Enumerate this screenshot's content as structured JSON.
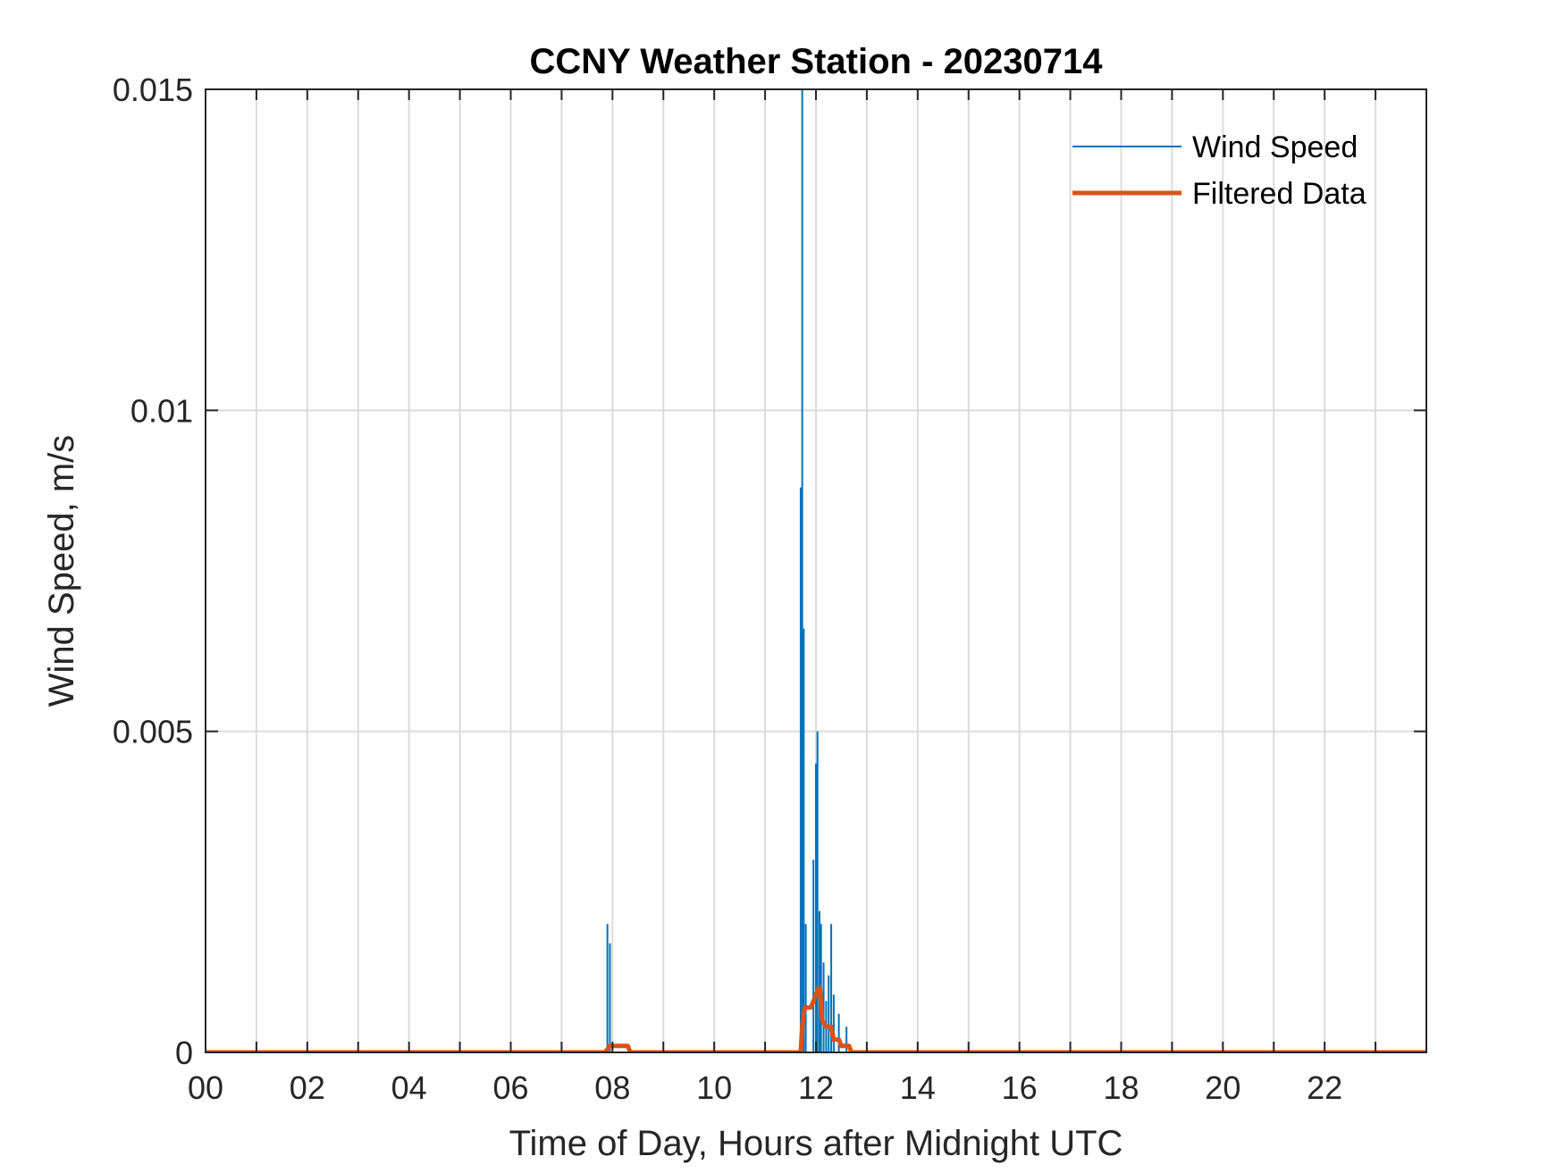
{
  "chart_data": {
    "type": "line",
    "title": "CCNY Weather Station - 20230714",
    "xlabel": "Time of Day, Hours after Midnight UTC",
    "ylabel": "Wind Speed, m/s",
    "xlim": [
      0,
      24
    ],
    "ylim": [
      0,
      0.015
    ],
    "x_ticks": [
      0,
      2,
      4,
      6,
      8,
      10,
      12,
      14,
      16,
      18,
      20,
      22
    ],
    "x_tick_labels": [
      "00",
      "02",
      "04",
      "06",
      "08",
      "10",
      "12",
      "14",
      "16",
      "18",
      "20",
      "22"
    ],
    "y_ticks": [
      0,
      0.005,
      0.01,
      0.015
    ],
    "y_tick_labels": [
      "0",
      "0.005",
      "0.01",
      "0.015"
    ],
    "grid": true,
    "legend_position": "top-right",
    "series": [
      {
        "name": "Wind Speed",
        "color": "#0072BD",
        "style": "spikes",
        "points": [
          [
            7.9,
            0.002
          ],
          [
            7.95,
            0.0017
          ],
          [
            11.7,
            0.0088
          ],
          [
            11.73,
            0.0152
          ],
          [
            11.76,
            0.0066
          ],
          [
            11.8,
            0.002
          ],
          [
            11.95,
            0.003
          ],
          [
            12.0,
            0.0045
          ],
          [
            12.03,
            0.005
          ],
          [
            12.07,
            0.0022
          ],
          [
            12.1,
            0.002
          ],
          [
            12.15,
            0.0014
          ],
          [
            12.2,
            0.0008
          ],
          [
            12.25,
            0.0012
          ],
          [
            12.3,
            0.002
          ],
          [
            12.35,
            0.0009
          ],
          [
            12.45,
            0.0006
          ],
          [
            12.6,
            0.0004
          ]
        ]
      },
      {
        "name": "Filtered Data",
        "color": "#D95319",
        "style": "line",
        "points": [
          [
            0,
            0
          ],
          [
            7.85,
            0
          ],
          [
            7.95,
            0.0001
          ],
          [
            8.3,
            0.0001
          ],
          [
            8.35,
            0
          ],
          [
            11.7,
            0
          ],
          [
            11.73,
            0.0004
          ],
          [
            11.78,
            0.0007
          ],
          [
            11.9,
            0.0007
          ],
          [
            11.95,
            0.0008
          ],
          [
            12.0,
            0.0009
          ],
          [
            12.05,
            0.001
          ],
          [
            12.08,
            0.001
          ],
          [
            12.12,
            0.0005
          ],
          [
            12.2,
            0.0004
          ],
          [
            12.3,
            0.0004
          ],
          [
            12.35,
            0.0002
          ],
          [
            12.45,
            0.0002
          ],
          [
            12.5,
            0.0001
          ],
          [
            12.65,
            0.0001
          ],
          [
            12.7,
            0
          ],
          [
            24,
            0
          ]
        ]
      }
    ]
  }
}
